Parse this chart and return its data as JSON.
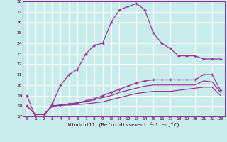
{
  "xlabel": "Windchill (Refroidissement éolien,°C)",
  "background_color": "#c8ecec",
  "grid_color": "#ffffff",
  "line_color": "#993399",
  "xlim": [
    -0.5,
    23.5
  ],
  "ylim": [
    17,
    28
  ],
  "xticks": [
    0,
    1,
    2,
    3,
    4,
    5,
    6,
    7,
    8,
    9,
    10,
    11,
    12,
    13,
    14,
    15,
    16,
    17,
    18,
    19,
    20,
    21,
    22,
    23
  ],
  "yticks": [
    17,
    18,
    19,
    20,
    21,
    22,
    23,
    24,
    25,
    26,
    27,
    28
  ],
  "line1_x": [
    0,
    1,
    2,
    3,
    4,
    5,
    6,
    7,
    8,
    9,
    10,
    11,
    12,
    13,
    14,
    15,
    16,
    17,
    18,
    19,
    20,
    21,
    22,
    23
  ],
  "line1_y": [
    19.0,
    17.0,
    17.0,
    18.2,
    20.0,
    21.0,
    21.5,
    23.0,
    23.8,
    24.0,
    26.0,
    27.2,
    27.5,
    27.8,
    27.2,
    25.0,
    24.0,
    23.5,
    22.8,
    22.8,
    22.8,
    22.5,
    22.5,
    22.5
  ],
  "line2_x": [
    0,
    1,
    2,
    3,
    4,
    5,
    6,
    7,
    8,
    9,
    10,
    11,
    12,
    13,
    14,
    15,
    16,
    17,
    18,
    19,
    20,
    21,
    22,
    23
  ],
  "line2_y": [
    18.0,
    17.2,
    17.2,
    18.0,
    18.1,
    18.2,
    18.3,
    18.5,
    18.7,
    19.0,
    19.3,
    19.6,
    19.9,
    20.2,
    20.4,
    20.5,
    20.5,
    20.5,
    20.5,
    20.5,
    20.5,
    21.0,
    21.0,
    19.5
  ],
  "line3_x": [
    0,
    1,
    2,
    3,
    4,
    5,
    6,
    7,
    8,
    9,
    10,
    11,
    12,
    13,
    14,
    15,
    16,
    17,
    18,
    19,
    20,
    21,
    22,
    23
  ],
  "line3_y": [
    18.0,
    17.2,
    17.2,
    18.0,
    18.1,
    18.2,
    18.3,
    18.4,
    18.6,
    18.8,
    19.0,
    19.3,
    19.5,
    19.7,
    19.9,
    20.0,
    20.0,
    20.0,
    20.0,
    20.0,
    20.0,
    20.4,
    20.3,
    19.3
  ],
  "line4_x": [
    0,
    1,
    2,
    3,
    4,
    5,
    6,
    7,
    8,
    9,
    10,
    11,
    12,
    13,
    14,
    15,
    16,
    17,
    18,
    19,
    20,
    21,
    22,
    23
  ],
  "line4_y": [
    18.0,
    17.2,
    17.2,
    18.0,
    18.05,
    18.1,
    18.15,
    18.2,
    18.3,
    18.4,
    18.6,
    18.8,
    19.0,
    19.2,
    19.3,
    19.4,
    19.4,
    19.4,
    19.5,
    19.6,
    19.7,
    19.8,
    19.8,
    19.0
  ]
}
